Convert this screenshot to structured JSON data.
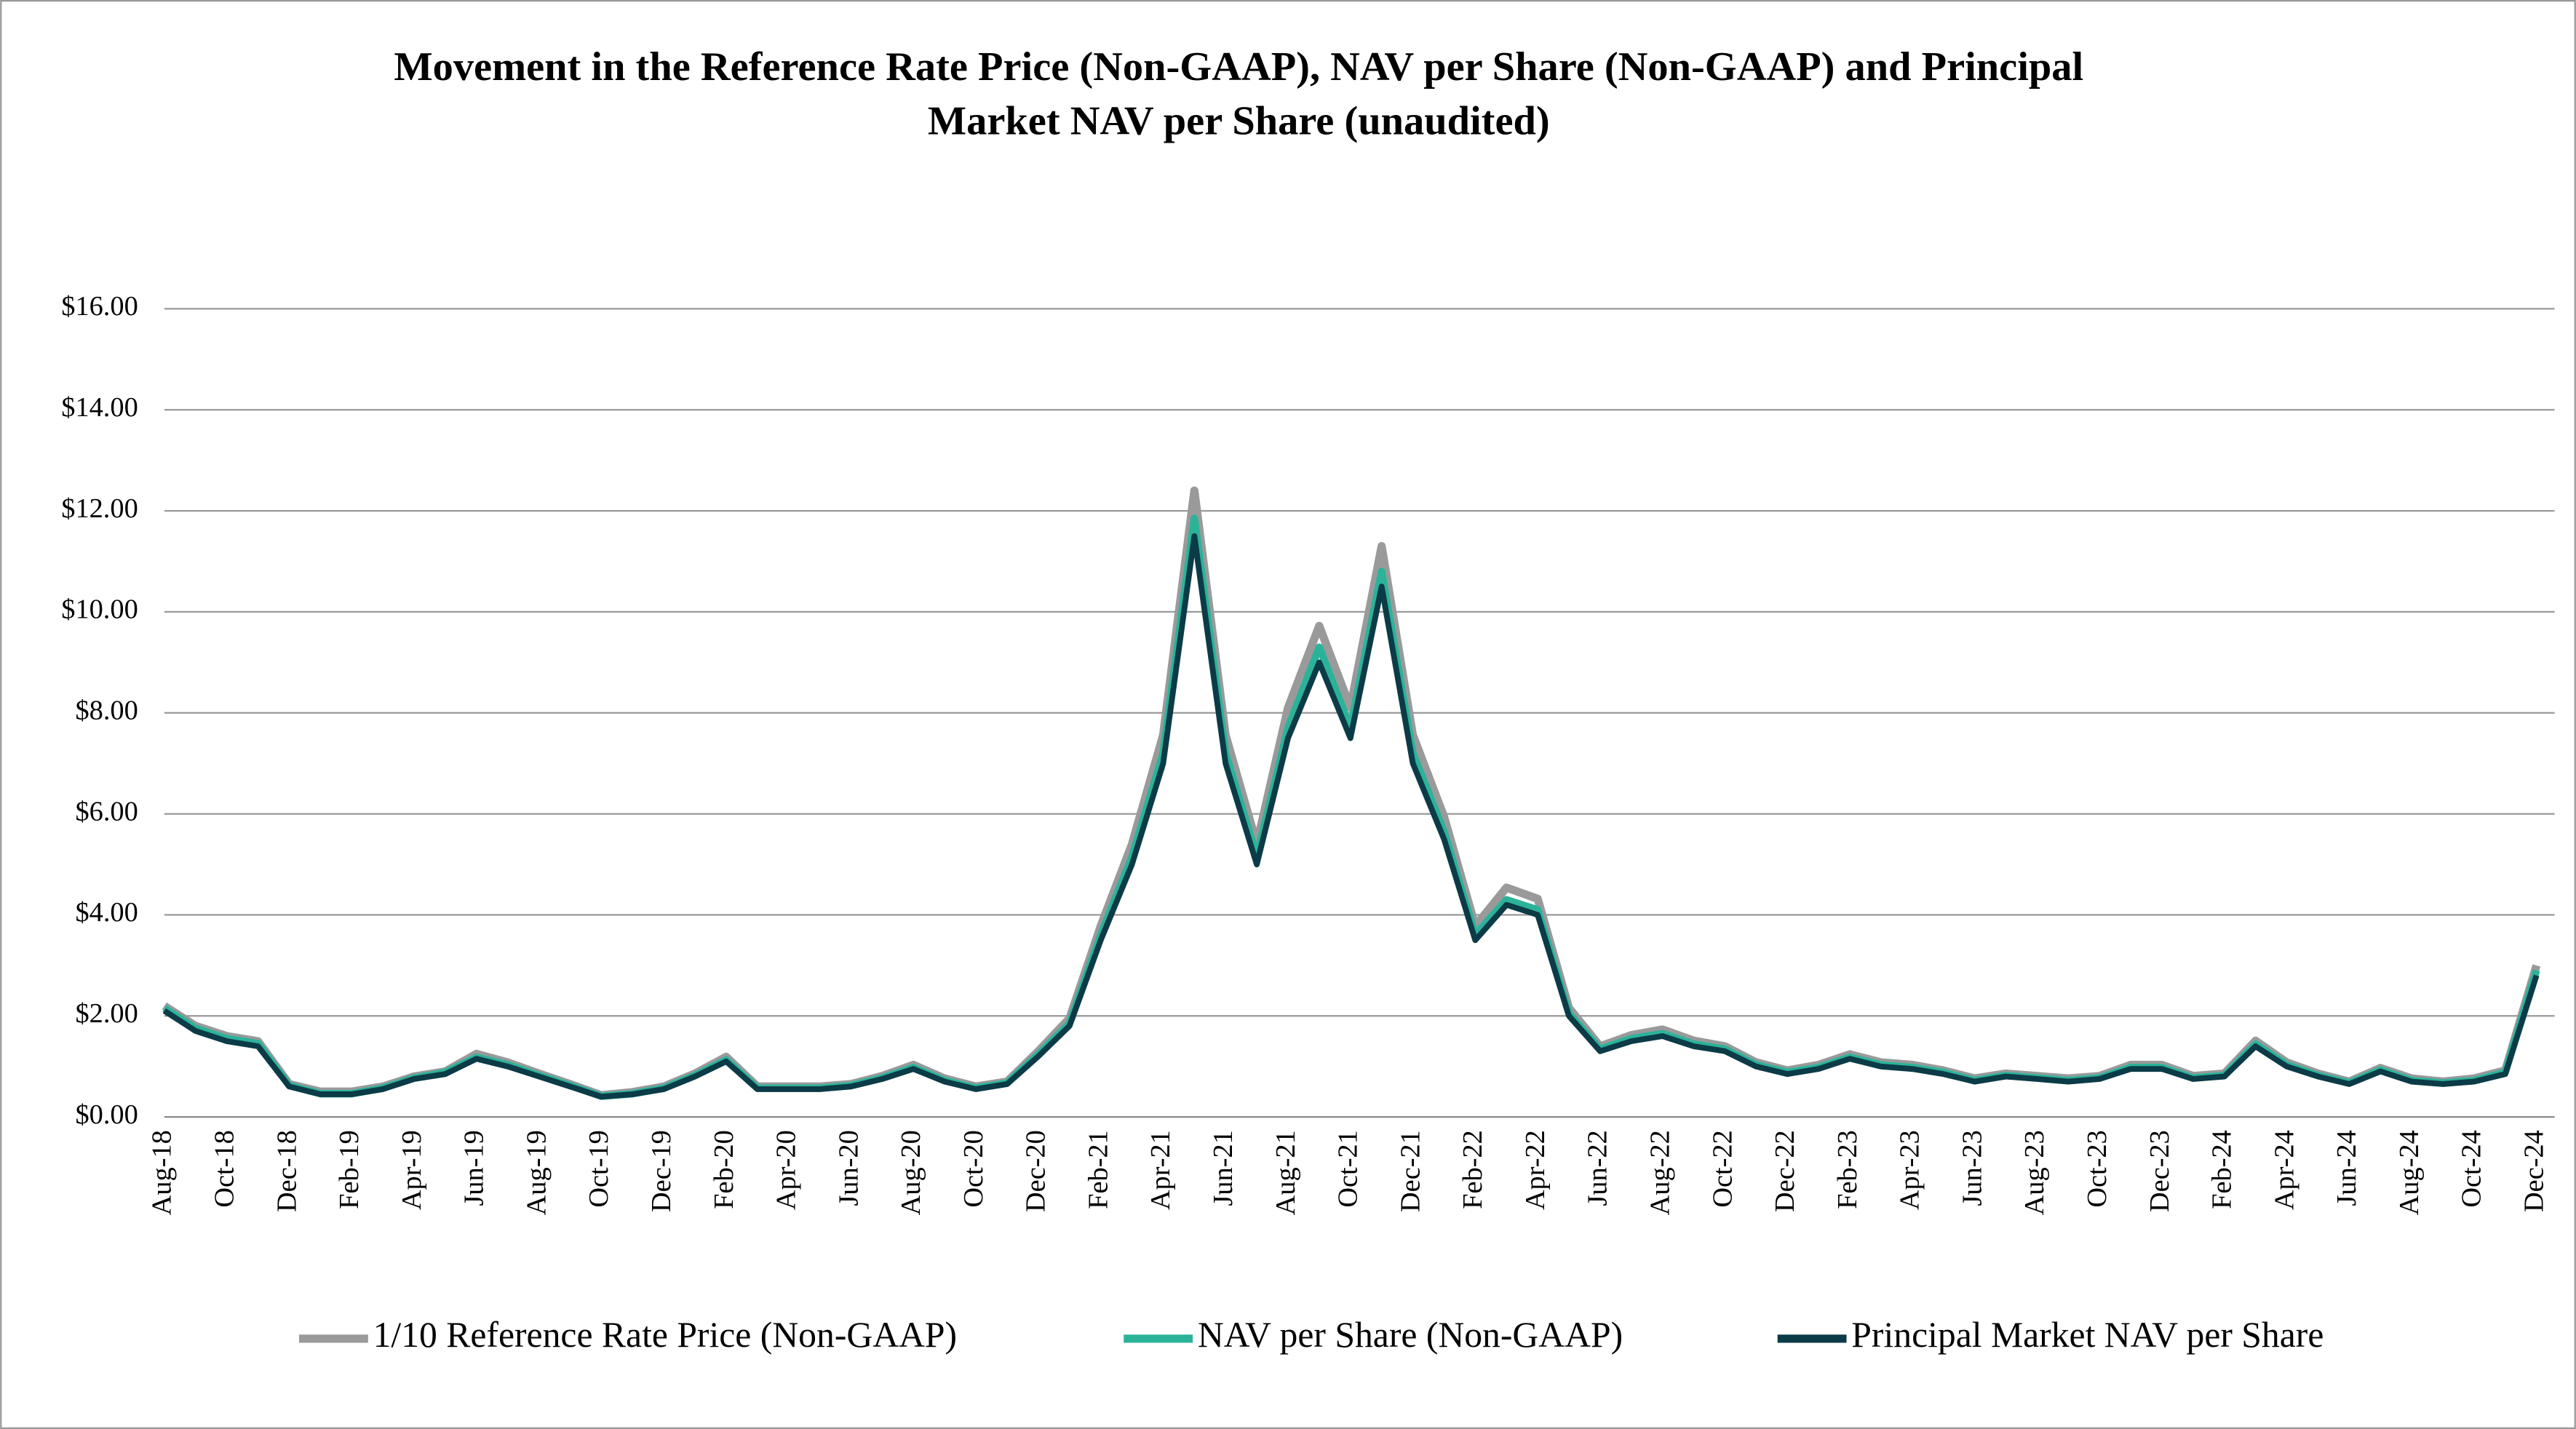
{
  "chart_data": {
    "type": "line",
    "title": "Movement in the Reference Rate Price (Non-GAAP), NAV per Share (Non-GAAP) and Principal",
    "subtitle": "Market NAV per Share (unaudited)",
    "categories": [
      "Aug-18",
      null,
      "Oct-18",
      null,
      "Dec-18",
      null,
      "Feb-19",
      null,
      "Apr-19",
      null,
      "Jun-19",
      null,
      "Aug-19",
      null,
      "Oct-19",
      null,
      "Dec-19",
      null,
      "Feb-20",
      null,
      "Apr-20",
      null,
      "Jun-20",
      null,
      "Aug-20",
      null,
      "Oct-20",
      null,
      "Dec-20",
      null,
      "Feb-21",
      null,
      "Apr-21",
      null,
      "Jun-21",
      null,
      "Aug-21",
      null,
      "Oct-21",
      null,
      "Dec-21",
      null,
      "Feb-22",
      null,
      "Apr-22",
      null,
      "Jun-22",
      null,
      "Aug-22",
      null,
      "Oct-22",
      null,
      "Dec-22",
      null,
      "Feb-23",
      null,
      "Apr-23",
      null,
      "Jun-23",
      null,
      "Aug-23",
      null,
      "Oct-23",
      null,
      "Dec-23",
      null,
      "Feb-24",
      null,
      "Apr-24",
      null,
      "Jun-24",
      null,
      "Aug-24",
      null,
      "Oct-24",
      null,
      "Dec-24"
    ],
    "series": [
      {
        "name": "1/10 Reference Rate Price (Non-GAAP)",
        "color": "#9a9a9a",
        "values": [
          2.2,
          1.8,
          1.6,
          1.5,
          0.65,
          0.5,
          0.5,
          0.6,
          0.8,
          0.9,
          1.25,
          1.08,
          0.86,
          0.65,
          0.43,
          0.49,
          0.6,
          0.86,
          1.19,
          0.6,
          0.6,
          0.6,
          0.65,
          0.81,
          1.03,
          0.76,
          0.6,
          0.7,
          1.3,
          1.95,
          3.78,
          5.4,
          7.56,
          12.4,
          7.56,
          5.4,
          8.1,
          9.72,
          8.1,
          11.3,
          7.56,
          5.94,
          3.78,
          4.54,
          4.32,
          2.16,
          1.4,
          1.62,
          1.73,
          1.51,
          1.4,
          1.08,
          0.92,
          1.03,
          1.24,
          1.08,
          1.03,
          0.92,
          0.76,
          0.86,
          0.81,
          0.76,
          0.81,
          1.03,
          1.03,
          0.81,
          0.86,
          1.51,
          1.08,
          0.86,
          0.7,
          0.97,
          0.76,
          0.7,
          0.76,
          0.92,
          3.0
        ]
      },
      {
        "name": "NAV per Share (Non-GAAP)",
        "color": "#2bb39a",
        "values": [
          2.15,
          1.75,
          1.55,
          1.45,
          0.62,
          0.46,
          0.46,
          0.57,
          0.77,
          0.88,
          1.18,
          1.03,
          0.82,
          0.62,
          0.41,
          0.46,
          0.57,
          0.82,
          1.13,
          0.57,
          0.57,
          0.57,
          0.62,
          0.77,
          0.98,
          0.72,
          0.57,
          0.67,
          1.24,
          1.85,
          3.6,
          5.15,
          7.2,
          11.85,
          7.2,
          5.15,
          7.7,
          9.3,
          7.7,
          10.8,
          7.2,
          5.65,
          3.6,
          4.3,
          4.1,
          2.05,
          1.34,
          1.55,
          1.65,
          1.44,
          1.34,
          1.03,
          0.88,
          0.98,
          1.18,
          1.03,
          0.98,
          0.88,
          0.72,
          0.82,
          0.77,
          0.72,
          0.77,
          0.98,
          0.98,
          0.77,
          0.82,
          1.44,
          1.03,
          0.82,
          0.67,
          0.93,
          0.72,
          0.67,
          0.72,
          0.88,
          2.9
        ]
      },
      {
        "name": "Principal Market NAV per Share",
        "color": "#0b3b47",
        "values": [
          2.1,
          1.7,
          1.5,
          1.4,
          0.6,
          0.45,
          0.45,
          0.55,
          0.75,
          0.85,
          1.15,
          1.0,
          0.8,
          0.6,
          0.4,
          0.45,
          0.55,
          0.8,
          1.1,
          0.55,
          0.55,
          0.55,
          0.6,
          0.75,
          0.95,
          0.7,
          0.55,
          0.65,
          1.2,
          1.8,
          3.5,
          5.0,
          7.0,
          11.5,
          7.0,
          5.0,
          7.5,
          9.0,
          7.5,
          10.5,
          7.0,
          5.5,
          3.5,
          4.2,
          4.0,
          2.0,
          1.3,
          1.5,
          1.6,
          1.4,
          1.3,
          1.0,
          0.85,
          0.95,
          1.15,
          1.0,
          0.95,
          0.85,
          0.7,
          0.8,
          0.75,
          0.7,
          0.75,
          0.95,
          0.95,
          0.75,
          0.8,
          1.4,
          1.0,
          0.8,
          0.65,
          0.9,
          0.7,
          0.65,
          0.7,
          0.85,
          2.8
        ]
      }
    ],
    "ylim": [
      0,
      16
    ],
    "yticks": [
      {
        "value": 0,
        "label": "$0.00"
      },
      {
        "value": 2,
        "label": "$2.00"
      },
      {
        "value": 4,
        "label": "$4.00"
      },
      {
        "value": 6,
        "label": "$6.00"
      },
      {
        "value": 8,
        "label": "$8.00"
      },
      {
        "value": 10,
        "label": "$10.00"
      },
      {
        "value": 12,
        "label": "$12.00"
      },
      {
        "value": 14,
        "label": "$14.00"
      },
      {
        "value": 16,
        "label": "$16.00"
      }
    ],
    "grid": true,
    "legend": "bottom"
  }
}
